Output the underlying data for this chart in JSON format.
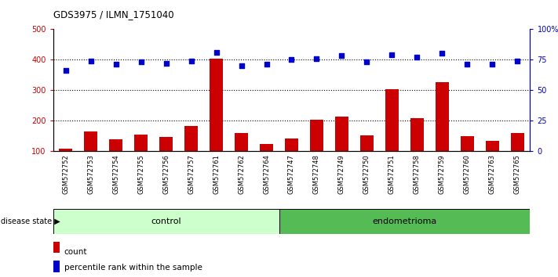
{
  "title": "GDS3975 / ILMN_1751040",
  "samples": [
    "GSM572752",
    "GSM572753",
    "GSM572754",
    "GSM572755",
    "GSM572756",
    "GSM572757",
    "GSM572761",
    "GSM572762",
    "GSM572764",
    "GSM572747",
    "GSM572748",
    "GSM572749",
    "GSM572750",
    "GSM572751",
    "GSM572758",
    "GSM572759",
    "GSM572760",
    "GSM572763",
    "GSM572765"
  ],
  "counts": [
    108,
    165,
    138,
    153,
    147,
    183,
    403,
    160,
    123,
    140,
    203,
    213,
    150,
    302,
    207,
    325,
    148,
    133,
    160
  ],
  "percentiles": [
    66,
    74,
    71,
    73,
    72,
    74,
    81,
    70,
    71,
    75,
    76,
    78,
    73,
    79,
    77,
    80,
    71,
    71,
    74
  ],
  "control_count": 9,
  "endometrioma_count": 10,
  "bar_color": "#cc0000",
  "dot_color": "#0000cc",
  "control_color": "#ccffcc",
  "endometrioma_color": "#55bb55",
  "ylim_left": [
    100,
    500
  ],
  "ylim_right": [
    0,
    100
  ],
  "yticks_left": [
    100,
    200,
    300,
    400,
    500
  ],
  "yticks_right": [
    0,
    25,
    50,
    75,
    100
  ],
  "ytick_labels_right": [
    "0",
    "25",
    "50",
    "75",
    "100%"
  ],
  "grid_lines": [
    200,
    300,
    400
  ],
  "background_color": "#ffffff",
  "tick_bg_color": "#c8c8c8"
}
